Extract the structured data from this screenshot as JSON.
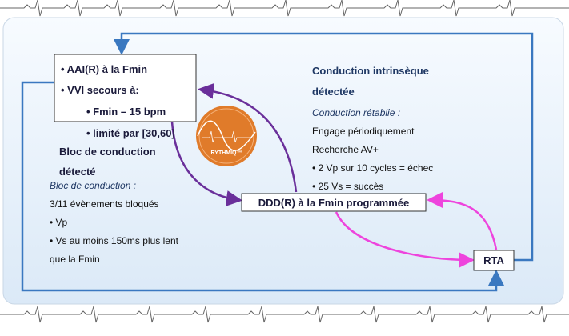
{
  "box_top": {
    "lines": [
      "• AAI(R) à la Fmin",
      "• VVI secours à:",
      "• Fmin – 15 bpm",
      "• limité par [30,60]"
    ]
  },
  "left_heading": {
    "lines": [
      "Bloc de conduction",
      "détecté"
    ]
  },
  "left_detail": {
    "title": "Bloc de conduction :",
    "lines": [
      "3/11 évènements bloqués",
      "• Vp",
      "• Vs au moins 150ms plus lent",
      "que la Fmin"
    ]
  },
  "right_heading": {
    "lines": [
      "Conduction intrinsèque",
      "détectée"
    ]
  },
  "right_detail": {
    "title": "Conduction rétablie :",
    "lines": [
      "Engage périodiquement",
      "Recherche AV+",
      "• 2 Vp sur 10 cycles = échec",
      "• 25 Vs = succès"
    ]
  },
  "center_box": {
    "label": "DDD(R) à la Fmin programmée"
  },
  "rta_box": {
    "label": "RTA"
  },
  "logo": {
    "label": "RYTHMIQ™"
  }
}
